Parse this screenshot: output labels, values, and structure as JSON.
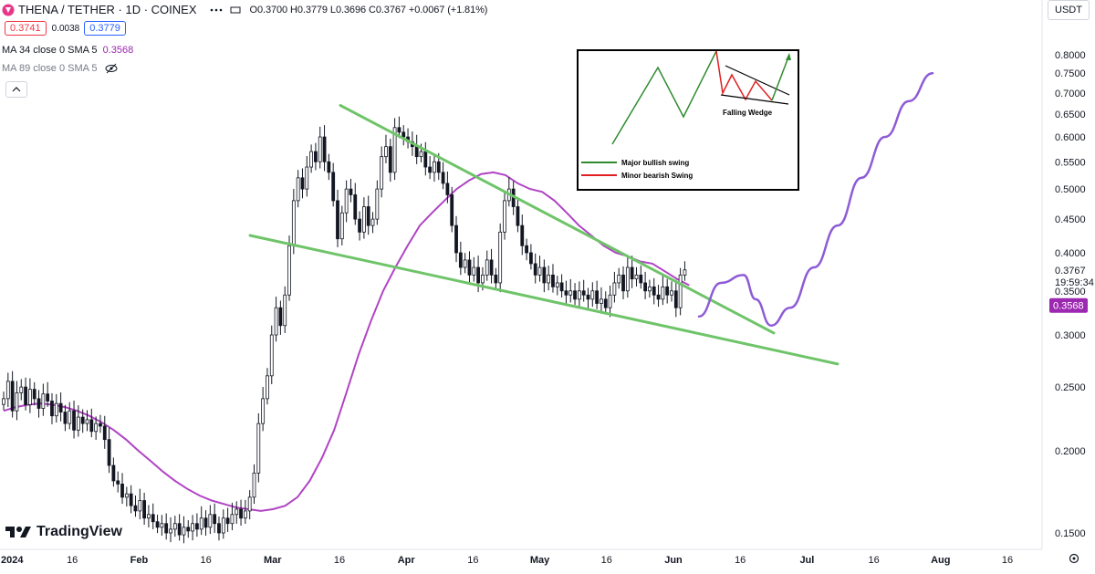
{
  "header": {
    "symbol": "THENA / TETHER · 1D · COINEX",
    "open": "O0.3700",
    "high": "H0.3779",
    "low": "L0.3696",
    "close": "C0.3767",
    "change": "+0.0067 (+1.81%)",
    "sell_price": "0.3741",
    "spread": "0.0038",
    "buy_price": "0.3779",
    "ma34_label": "MA 34 close 0 SMA 5",
    "ma34_value": "0.3568",
    "ma89_label": "MA 89 close 0 SMA 5",
    "currency": "USDT",
    "logo_text": "TradingView"
  },
  "colors": {
    "up": "#089981",
    "down": "#f23645",
    "candle": "#131722",
    "ma": "#b044c4",
    "trendline": "#6fc46a",
    "projection": "#8e5bd6",
    "accent": "#2962ff"
  },
  "chart_data": {
    "type": "candlestick",
    "title": "THENA / TETHER · 1D · COINEX",
    "x_ticks": [
      "2024",
      "16",
      "Feb",
      "16",
      "Mar",
      "16",
      "Apr",
      "16",
      "May",
      "16",
      "Jun",
      "16",
      "Jul",
      "16",
      "Aug",
      "16"
    ],
    "y_ticks": [
      "0.8000",
      "0.7500",
      "0.7000",
      "0.6500",
      "0.6000",
      "0.5500",
      "0.5000",
      "0.4500",
      "0.4000",
      "0.3500",
      "0.3000",
      "0.2500",
      "0.2000",
      "0.1500"
    ],
    "ylim": [
      0.125,
      0.835
    ],
    "scale": "log",
    "last_price": "0.3767",
    "countdown": "19:59:34",
    "ma_marker": "0.3568",
    "closes": [
      0.24,
      0.255,
      0.23,
      0.245,
      0.25,
      0.235,
      0.248,
      0.24,
      0.232,
      0.244,
      0.238,
      0.226,
      0.236,
      0.229,
      0.22,
      0.23,
      0.215,
      0.225,
      0.22,
      0.223,
      0.214,
      0.22,
      0.218,
      0.208,
      0.19,
      0.18,
      0.178,
      0.17,
      0.172,
      0.165,
      0.162,
      0.168,
      0.158,
      0.16,
      0.156,
      0.153,
      0.155,
      0.15,
      0.152,
      0.155,
      0.149,
      0.153,
      0.151,
      0.155,
      0.152,
      0.158,
      0.153,
      0.16,
      0.155,
      0.15,
      0.158,
      0.155,
      0.16,
      0.163,
      0.158,
      0.162,
      0.17,
      0.185,
      0.22,
      0.24,
      0.26,
      0.3,
      0.33,
      0.31,
      0.345,
      0.41,
      0.48,
      0.52,
      0.5,
      0.54,
      0.57,
      0.55,
      0.6,
      0.55,
      0.53,
      0.48,
      0.42,
      0.46,
      0.5,
      0.49,
      0.45,
      0.43,
      0.47,
      0.44,
      0.45,
      0.5,
      0.56,
      0.58,
      0.53,
      0.62,
      0.61,
      0.6,
      0.59,
      0.58,
      0.56,
      0.57,
      0.54,
      0.53,
      0.55,
      0.53,
      0.51,
      0.49,
      0.44,
      0.4,
      0.38,
      0.39,
      0.37,
      0.38,
      0.36,
      0.37,
      0.39,
      0.37,
      0.36,
      0.43,
      0.48,
      0.5,
      0.47,
      0.44,
      0.41,
      0.4,
      0.385,
      0.37,
      0.38,
      0.36,
      0.37,
      0.355,
      0.36,
      0.35,
      0.345,
      0.35,
      0.34,
      0.35,
      0.345,
      0.34,
      0.35,
      0.335,
      0.34,
      0.33,
      0.345,
      0.36,
      0.37,
      0.35,
      0.38,
      0.365,
      0.37,
      0.36,
      0.35,
      0.355,
      0.345,
      0.34,
      0.355,
      0.345,
      0.35,
      0.33,
      0.37,
      0.3767
    ],
    "ma34": [
      0.23,
      0.233,
      0.235,
      0.236,
      0.235,
      0.233,
      0.23,
      0.226,
      0.221,
      0.215,
      0.208,
      0.2,
      0.193,
      0.186,
      0.18,
      0.175,
      0.171,
      0.168,
      0.166,
      0.164,
      0.163,
      0.162,
      0.163,
      0.165,
      0.17,
      0.18,
      0.195,
      0.215,
      0.245,
      0.28,
      0.315,
      0.35,
      0.38,
      0.41,
      0.44,
      0.46,
      0.48,
      0.5,
      0.515,
      0.527,
      0.53,
      0.525,
      0.51,
      0.5,
      0.495,
      0.48,
      0.46,
      0.44,
      0.425,
      0.41,
      0.4,
      0.395,
      0.388,
      0.385,
      0.375,
      0.365,
      0.357
    ],
    "projection": [
      0.32,
      0.36,
      0.37,
      0.34,
      0.31,
      0.33,
      0.38,
      0.44,
      0.52,
      0.6,
      0.68,
      0.75
    ],
    "trendlines": [
      {
        "name": "Falling wedge upper",
        "from": [
          0.67
        ],
        "to": [
          0.3
        ]
      },
      {
        "name": "Falling wedge lower",
        "from": [
          0.425
        ],
        "to": [
          0.27
        ]
      }
    ],
    "inset": {
      "caption": "Falling Wedge",
      "legend": [
        "Major bullish swing",
        "Minor bearish Swing"
      ]
    }
  }
}
